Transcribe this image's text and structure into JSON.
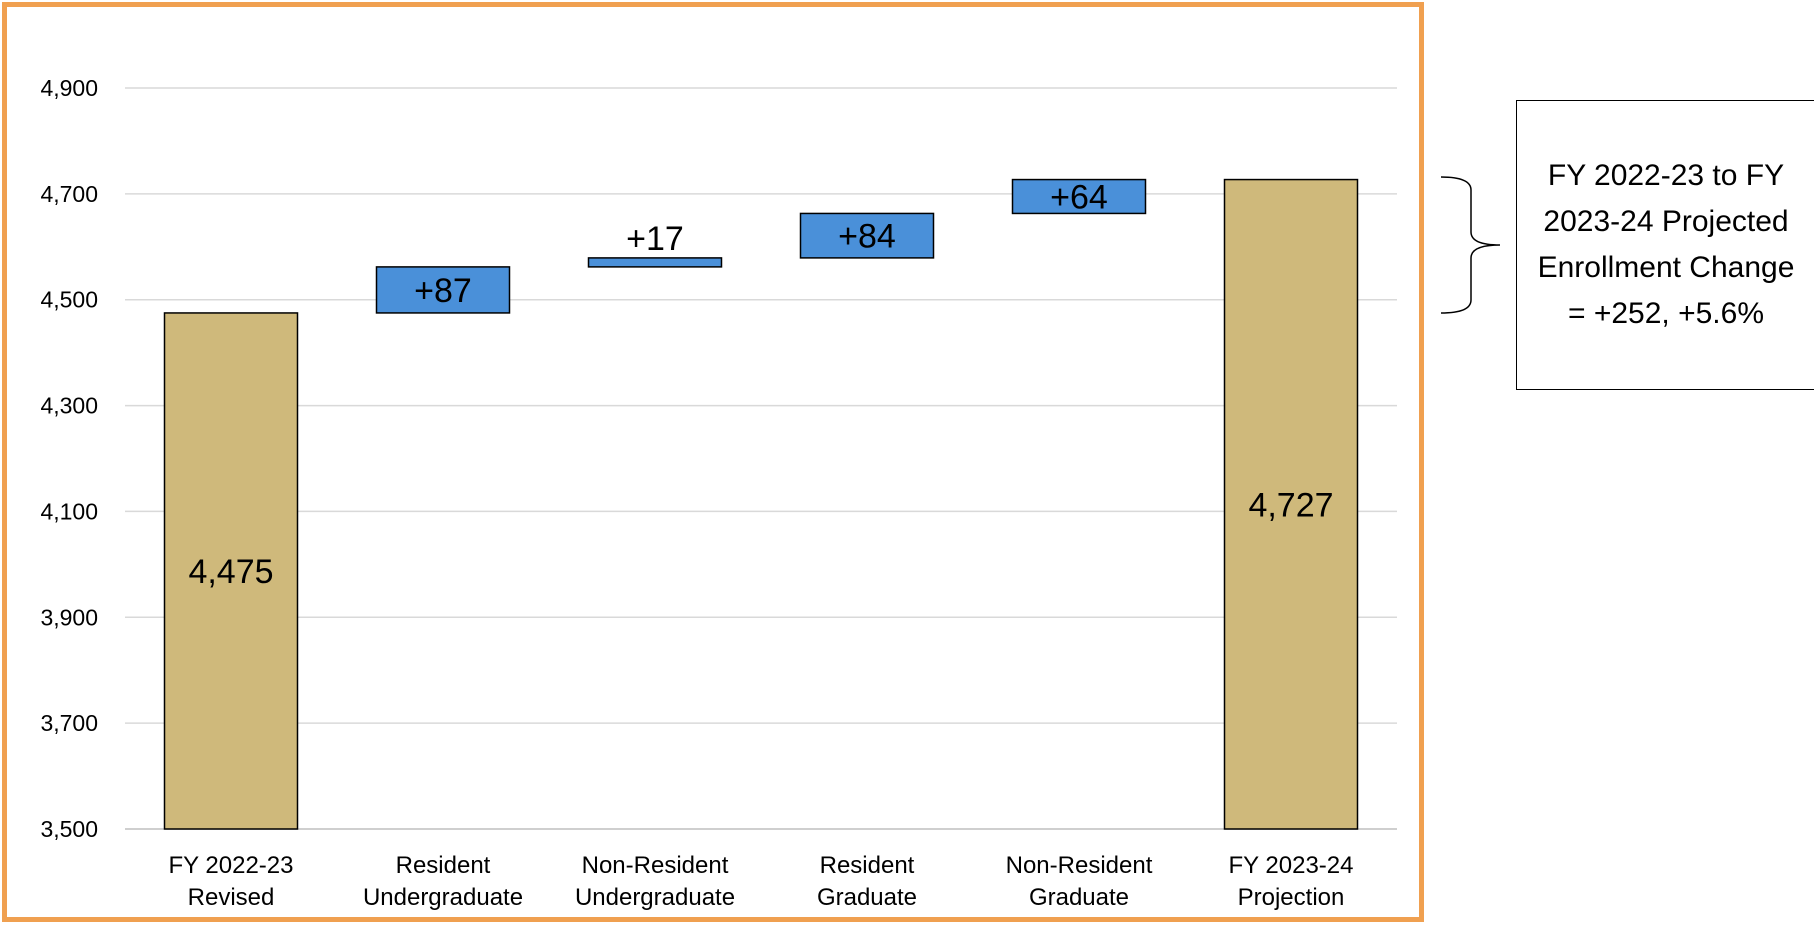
{
  "chart_data": {
    "type": "waterfall",
    "categories": [
      [
        "FY 2022-23",
        "Revised"
      ],
      [
        "Resident",
        "Undergraduate"
      ],
      [
        "Non-Resident",
        "Undergraduate"
      ],
      [
        "Resident",
        "Graduate"
      ],
      [
        "Non-Resident",
        "Graduate"
      ],
      [
        "FY 2023-24",
        "Projection"
      ]
    ],
    "bars": [
      {
        "kind": "total",
        "value": 4475,
        "label": "4,475"
      },
      {
        "kind": "change",
        "value": 87,
        "label": "+87"
      },
      {
        "kind": "change",
        "value": 17,
        "label": "+17"
      },
      {
        "kind": "change",
        "value": 84,
        "label": "+84"
      },
      {
        "kind": "change",
        "value": 64,
        "label": "+64"
      },
      {
        "kind": "total",
        "value": 4727,
        "label": "4,727"
      }
    ],
    "ylim": [
      3500,
      4950
    ],
    "yticks": [
      3500,
      3700,
      3900,
      4100,
      4300,
      4500,
      4700,
      4900
    ],
    "ytick_labels": [
      "3,500",
      "3,700",
      "3,900",
      "4,100",
      "4,300",
      "4,500",
      "4,700",
      "4,900"
    ],
    "grid": true,
    "colors": {
      "total": "#cfb97b",
      "change": "#4a90d9",
      "frame": "#f0a050",
      "grid": "#d9d9d9"
    },
    "annotation": "FY 2022-23 to FY 2023-24 Projected Enrollment Change = +252, +5.6%"
  }
}
